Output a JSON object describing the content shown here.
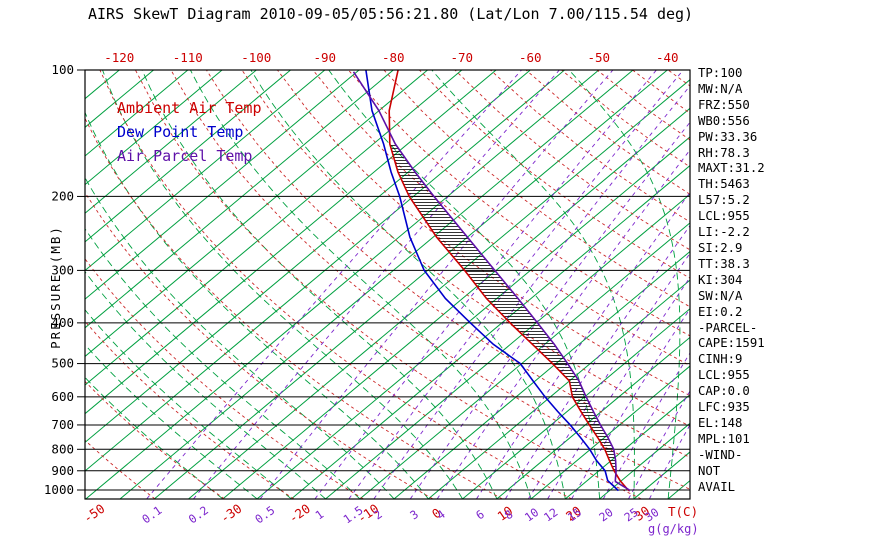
{
  "title": "AIRS SkewT Diagram 2010-09-05/05:56:21.80 (Lat/Lon 7.00/115.54 deg)",
  "legend": {
    "items": [
      {
        "label": "Ambient Air Temp",
        "color": "#cc0000"
      },
      {
        "label": "Dew Point Temp",
        "color": "#0000cc"
      },
      {
        "label": "Air Parcel Temp",
        "color": "#5e10a8"
      }
    ]
  },
  "axes": {
    "pressure": {
      "label": "PRESSURE (MB)",
      "ticks": [
        100,
        200,
        300,
        400,
        500,
        600,
        700,
        800,
        900,
        1000
      ]
    },
    "temperature": {
      "unit_label": "T(C)",
      "top_ticks": [
        -120,
        -110,
        -100,
        -90,
        -80,
        -70,
        -60,
        -50,
        -40
      ],
      "bottom_ticks": [
        -50,
        -30,
        -20,
        -10,
        0,
        10,
        20,
        30
      ]
    },
    "mixing_ratio": {
      "unit_label": "g(g/kg)",
      "ticks": [
        0.1,
        0.2,
        0.5,
        1,
        1.5,
        2,
        3,
        4,
        6,
        8,
        10,
        12,
        15,
        20,
        25,
        30
      ]
    }
  },
  "stats_panel": [
    "TP:100",
    "MW:N/A",
    "FRZ:550",
    "WB0:556",
    "PW:33.36",
    "RH:78.3",
    "MAXT:31.2",
    "TH:5463",
    "L57:5.2",
    "LCL:955",
    "LI:-2.2",
    "SI:2.9",
    "TT:38.3",
    "KI:304",
    "SW:N/A",
    "EI:0.2",
    "-PARCEL-",
    "CAPE:1591",
    "CINH:9",
    "LCL:955",
    "CAP:0.0",
    "LFC:935",
    "EL:148",
    "MPL:101",
    "-WIND-",
    "NOT",
    "AVAIL"
  ],
  "colors": {
    "ambient_red": "#cc0000",
    "dewpoint_blue": "#0000cc",
    "parcel_purple": "#5e10a8",
    "isotherm_green": "#00a040",
    "dry_adiabat_red": "#cc2929",
    "mixing_ratio_purple": "#7d26cd",
    "axis_black": "#000000"
  },
  "chart_data": {
    "type": "line",
    "variant": "skew-t-log-p",
    "title": "AIRS SkewT Diagram 2010-09-05/05:56:21.80 (Lat/Lon 7.00/115.54 deg)",
    "pressure_scale": "log",
    "pressure_range_mb": [
      100,
      1050
    ],
    "isotherm_step_c": 5,
    "dry_adiabat_theta_step_k": 10,
    "moist_adiabat_surface_temps_c": [
      -30,
      -25,
      -20,
      -15,
      -10,
      -5,
      0,
      5,
      10,
      15,
      20,
      25,
      30,
      35,
      40
    ],
    "mixing_ratio_lines_g_kg": [
      0.1,
      0.2,
      0.5,
      1,
      1.5,
      2,
      3,
      4,
      6,
      8,
      10,
      12,
      15,
      20,
      25,
      30
    ],
    "series": [
      {
        "name": "Ambient Air Temp",
        "color": "#cc0000",
        "points_p_t": [
          [
            1005,
            28.0
          ],
          [
            1000,
            27.6
          ],
          [
            950,
            24.8
          ],
          [
            900,
            22.2
          ],
          [
            850,
            19.7
          ],
          [
            800,
            17.1
          ],
          [
            750,
            14.0
          ],
          [
            700,
            10.6
          ],
          [
            650,
            7.0
          ],
          [
            600,
            3.2
          ],
          [
            550,
            0.0
          ],
          [
            500,
            -5.5
          ],
          [
            450,
            -11.8
          ],
          [
            400,
            -18.8
          ],
          [
            350,
            -26.5
          ],
          [
            300,
            -34.6
          ],
          [
            250,
            -44.5
          ],
          [
            200,
            -55.6
          ],
          [
            175,
            -61.5
          ],
          [
            150,
            -67.6
          ],
          [
            125,
            -73.5
          ],
          [
            100,
            -79.3
          ]
        ]
      },
      {
        "name": "Dew Point Temp",
        "color": "#0000cc",
        "points_p_t": [
          [
            1005,
            26.3
          ],
          [
            1000,
            26.1
          ],
          [
            950,
            23.0
          ],
          [
            900,
            20.9
          ],
          [
            850,
            17.8
          ],
          [
            800,
            14.9
          ],
          [
            750,
            11.5
          ],
          [
            700,
            7.8
          ],
          [
            650,
            3.6
          ],
          [
            600,
            -0.8
          ],
          [
            550,
            -5.3
          ],
          [
            500,
            -10.2
          ],
          [
            450,
            -17.5
          ],
          [
            400,
            -24.6
          ],
          [
            350,
            -32.5
          ],
          [
            300,
            -40.5
          ],
          [
            250,
            -48.4
          ],
          [
            200,
            -57.0
          ],
          [
            175,
            -62.5
          ],
          [
            150,
            -68.5
          ],
          [
            125,
            -76.0
          ],
          [
            100,
            -84.0
          ]
        ]
      },
      {
        "name": "Air Parcel Temp",
        "color": "#5e10a8",
        "points_p_t": [
          [
            1005,
            28.0
          ],
          [
            1000,
            27.8
          ],
          [
            955,
            24.3
          ],
          [
            950,
            24.1
          ],
          [
            900,
            22.5
          ],
          [
            850,
            20.6
          ],
          [
            800,
            18.4
          ],
          [
            750,
            15.5
          ],
          [
            700,
            12.2
          ],
          [
            650,
            8.8
          ],
          [
            600,
            5.2
          ],
          [
            550,
            1.4
          ],
          [
            500,
            -3.3
          ],
          [
            450,
            -8.6
          ],
          [
            400,
            -14.8
          ],
          [
            350,
            -21.9
          ],
          [
            300,
            -30.2
          ],
          [
            250,
            -40.0
          ],
          [
            200,
            -52.0
          ],
          [
            175,
            -59.0
          ],
          [
            150,
            -66.8
          ],
          [
            125,
            -75.0
          ],
          [
            101,
            -85.5
          ]
        ]
      }
    ],
    "cape_hatch_pressures": [
      900,
      850,
      800,
      750,
      700,
      650,
      600,
      550,
      500,
      450,
      400,
      350,
      300,
      250,
      200,
      175,
      150
    ],
    "annotations": {
      "cape_region": "hatched area between Air Parcel Temp and Ambient Air Temp"
    }
  }
}
